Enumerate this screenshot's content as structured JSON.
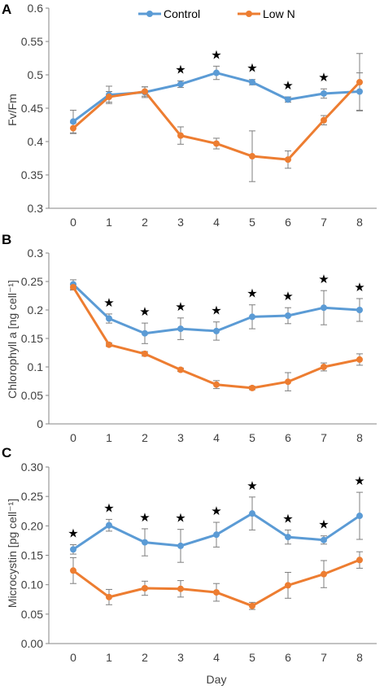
{
  "colors": {
    "control": "#5b9bd5",
    "low_n": "#ed7d31",
    "axis": "#868686",
    "errorbar": "#7f7f7f"
  },
  "legend": {
    "placement": "top-center",
    "series": [
      "Control",
      "Low N"
    ]
  },
  "shared_xlabel": "Day",
  "chart_data": [
    {
      "panel": "A",
      "type": "line",
      "ylabel": "Fv/Fm",
      "xlabel": "",
      "x": [
        0,
        1,
        2,
        3,
        4,
        5,
        6,
        7,
        8
      ],
      "xlim": [
        0,
        8
      ],
      "ylim": [
        0.3,
        0.6
      ],
      "yticks": [
        "0.3",
        "0.35",
        "0.4",
        "0.45",
        "0.5",
        "0.55",
        "0.6"
      ],
      "grid": false,
      "series": [
        {
          "name": "Control",
          "values": [
            0.43,
            0.47,
            0.474,
            0.486,
            0.503,
            0.489,
            0.463,
            0.472,
            0.475
          ],
          "errors": [
            0.017,
            0.013,
            0.008,
            0.005,
            0.01,
            0.004,
            0.004,
            0.007,
            0.028
          ]
        },
        {
          "name": "Low N",
          "values": [
            0.42,
            0.467,
            0.475,
            0.409,
            0.397,
            0.378,
            0.373,
            0.432,
            0.489
          ],
          "errors": [
            0.008,
            0.008,
            0.007,
            0.013,
            0.008,
            0.038,
            0.013,
            0.007,
            0.043
          ]
        }
      ],
      "significance": [
        "",
        "",
        "",
        "★",
        "★",
        "★",
        "★",
        "★",
        ""
      ]
    },
    {
      "panel": "B",
      "type": "line",
      "ylabel": "Chlorophyll a  [ng cell⁻¹]",
      "xlabel": "",
      "x": [
        0,
        1,
        2,
        3,
        4,
        5,
        6,
        7,
        8
      ],
      "xlim": [
        0,
        8
      ],
      "ylim": [
        0,
        0.3
      ],
      "yticks": [
        "0",
        "0.05",
        "0.1",
        "0.15",
        "0.2",
        "0.25",
        "0.3"
      ],
      "grid": false,
      "series": [
        {
          "name": "Control",
          "values": [
            0.245,
            0.185,
            0.159,
            0.167,
            0.163,
            0.188,
            0.19,
            0.204,
            0.2
          ],
          "errors": [
            0.008,
            0.008,
            0.018,
            0.019,
            0.016,
            0.021,
            0.014,
            0.03,
            0.02
          ]
        },
        {
          "name": "Low N",
          "values": [
            0.24,
            0.139,
            0.123,
            0.095,
            0.069,
            0.063,
            0.074,
            0.1,
            0.113
          ],
          "errors": [
            0.005,
            0.003,
            0.004,
            0.003,
            0.007,
            0.003,
            0.016,
            0.007,
            0.01
          ]
        }
      ],
      "significance": [
        "",
        "★",
        "★",
        "★",
        "★",
        "★",
        "★",
        "★",
        "★"
      ]
    },
    {
      "panel": "C",
      "type": "line",
      "ylabel": "Microcystin [pg  cell⁻¹]",
      "xlabel": "Day",
      "x": [
        0,
        1,
        2,
        3,
        4,
        5,
        6,
        7,
        8
      ],
      "xlim": [
        0,
        8
      ],
      "ylim": [
        0,
        0.3
      ],
      "yticks": [
        "0.00",
        "0.05",
        "0.10",
        "0.15",
        "0.20",
        "0.25",
        "0.30"
      ],
      "grid": false,
      "series": [
        {
          "name": "Control",
          "values": [
            0.16,
            0.201,
            0.172,
            0.166,
            0.185,
            0.221,
            0.181,
            0.176,
            0.217
          ],
          "errors": [
            0.008,
            0.01,
            0.023,
            0.028,
            0.021,
            0.028,
            0.012,
            0.007,
            0.04
          ]
        },
        {
          "name": "Low N",
          "values": [
            0.124,
            0.079,
            0.094,
            0.093,
            0.087,
            0.064,
            0.099,
            0.118,
            0.142
          ],
          "errors": [
            0.022,
            0.013,
            0.012,
            0.014,
            0.015,
            0.006,
            0.022,
            0.023,
            0.014
          ]
        }
      ],
      "significance": [
        "★",
        "★",
        "★",
        "★",
        "★",
        "★",
        "★",
        "★",
        "★"
      ]
    }
  ]
}
